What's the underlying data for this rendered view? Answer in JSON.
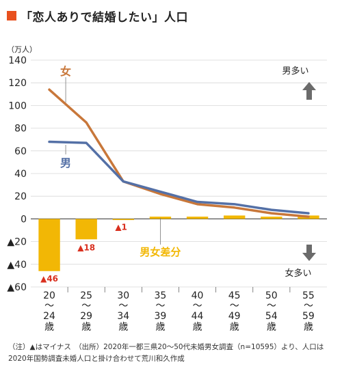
{
  "title": "「恋人ありで結婚したい」人口",
  "unit_label": "（万人）",
  "annotations": {
    "male_more": "男多い",
    "female_more": "女多い"
  },
  "footnote": "（注）▲はマイナス　（出所）2020年一都三県20〜50代未婚男女調査（n=10595）より、人口は2020年国勢調査未婚人口と掛け合わせて荒川和久作成",
  "colors": {
    "title_mark": "#e8501e",
    "female": "#c8773a",
    "male": "#5470a6",
    "diff": "#f2b705",
    "negative_label": "#d9301f",
    "arrow": "#6b6b6b"
  },
  "chart_data": {
    "type": "line",
    "categories": [
      {
        "top": "20",
        "sep": "〜",
        "bottom": "24",
        "unit": "歳"
      },
      {
        "top": "25",
        "sep": "〜",
        "bottom": "29",
        "unit": "歳"
      },
      {
        "top": "30",
        "sep": "〜",
        "bottom": "34",
        "unit": "歳"
      },
      {
        "top": "35",
        "sep": "〜",
        "bottom": "39",
        "unit": "歳"
      },
      {
        "top": "40",
        "sep": "〜",
        "bottom": "44",
        "unit": "歳"
      },
      {
        "top": "45",
        "sep": "〜",
        "bottom": "49",
        "unit": "歳"
      },
      {
        "top": "50",
        "sep": "〜",
        "bottom": "54",
        "unit": "歳"
      },
      {
        "top": "55",
        "sep": "〜",
        "bottom": "59",
        "unit": "歳"
      }
    ],
    "ylim": [
      -60,
      140
    ],
    "yticks": [
      140,
      120,
      100,
      80,
      60,
      40,
      20,
      0,
      -20,
      -40,
      -60
    ],
    "ytick_labels": [
      "140",
      "120",
      "100",
      "80",
      "60",
      "40",
      "20",
      "0",
      "▲20",
      "▲40",
      "▲60"
    ],
    "grid": true,
    "series": [
      {
        "name": "女",
        "type": "line",
        "values": [
          114,
          85,
          33,
          22,
          13,
          10,
          5,
          2
        ]
      },
      {
        "name": "男",
        "type": "line",
        "values": [
          68,
          67,
          33,
          24,
          15,
          13,
          8,
          5
        ]
      },
      {
        "name": "男女差分",
        "type": "bar",
        "values": [
          -46,
          -18,
          -1,
          2,
          2,
          3,
          2,
          3
        ]
      }
    ],
    "bar_labels": [
      "▲46",
      "▲18",
      "▲1",
      "",
      "",
      "",
      "",
      ""
    ]
  }
}
